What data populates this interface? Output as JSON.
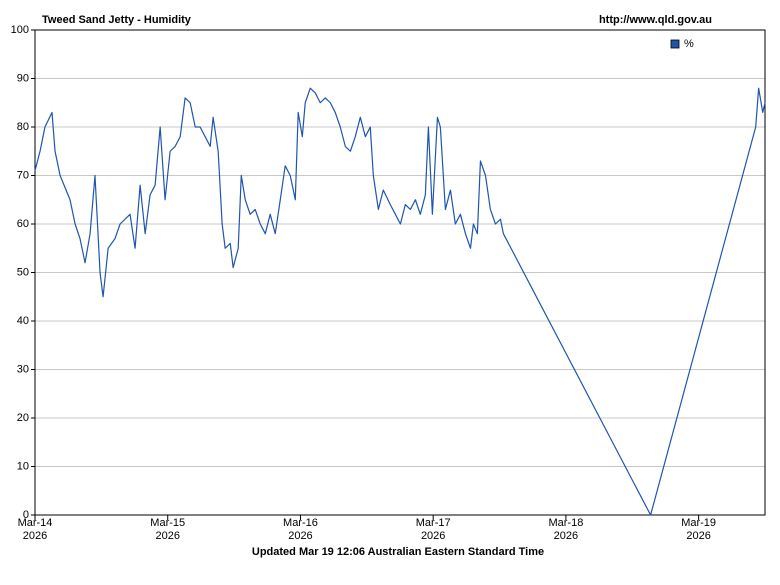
{
  "chart_data": {
    "type": "line",
    "title": "Tweed Sand Jetty - Humidity",
    "source": "http://www.qld.gov.au",
    "footer": "Updated Mar 19 12:06 Australian Eastern Standard Time",
    "x": [
      14.0,
      14.038,
      14.075,
      14.128,
      14.151,
      14.189,
      14.264,
      14.302,
      14.339,
      14.377,
      14.415,
      14.452,
      14.49,
      14.513,
      14.551,
      14.603,
      14.641,
      14.716,
      14.754,
      14.792,
      14.83,
      14.867,
      14.905,
      14.943,
      14.98,
      15.018,
      15.056,
      15.094,
      15.131,
      15.169,
      15.207,
      15.244,
      15.282,
      15.32,
      15.342,
      15.38,
      15.41,
      15.433,
      15.471,
      15.493,
      15.531,
      15.554,
      15.584,
      15.621,
      15.659,
      15.697,
      15.735,
      15.772,
      15.81,
      15.848,
      15.885,
      15.923,
      15.961,
      15.983,
      16.014,
      16.036,
      16.074,
      16.112,
      16.149,
      16.187,
      16.225,
      16.262,
      16.3,
      16.338,
      16.376,
      16.413,
      16.451,
      16.489,
      16.526,
      16.549,
      16.587,
      16.624,
      16.677,
      16.715,
      16.753,
      16.79,
      16.828,
      16.866,
      16.903,
      16.941,
      16.964,
      16.994,
      17.032,
      17.054,
      17.092,
      17.13,
      17.167,
      17.205,
      17.243,
      17.281,
      17.303,
      17.333,
      17.356,
      17.394,
      17.431,
      17.469,
      17.507,
      17.529,
      18.638,
      19.43,
      19.452,
      19.483,
      19.5
    ],
    "series": [
      {
        "name": "%",
        "color": "#1f55ad",
        "values": [
          71,
          75,
          80,
          83,
          75,
          70,
          65,
          60,
          57,
          52,
          58,
          70,
          50,
          45,
          55,
          57,
          60,
          62,
          55,
          68,
          58,
          66,
          68,
          80,
          65,
          75,
          76,
          78,
          86,
          85,
          80,
          80,
          78,
          76,
          82,
          75,
          60,
          55,
          56,
          51,
          55,
          70,
          65,
          62,
          63,
          60,
          58,
          62,
          58,
          65,
          72,
          70,
          65,
          83,
          78,
          85,
          88,
          87,
          85,
          86,
          85,
          83,
          80,
          76,
          75,
          78,
          82,
          78,
          80,
          70,
          63,
          67,
          64,
          62,
          60,
          64,
          63,
          65,
          62,
          66,
          80,
          62,
          82,
          80,
          63,
          67,
          60,
          62,
          58,
          55,
          60,
          58,
          73,
          70,
          63,
          60,
          61,
          58,
          0,
          80,
          88,
          83,
          85
        ]
      }
    ],
    "xlim": [
      14,
      19.5
    ],
    "xticks": [
      {
        "value": 14,
        "label": "Mar-14"
      },
      {
        "value": 15,
        "label": "Mar-15"
      },
      {
        "value": 16,
        "label": "Mar-16"
      },
      {
        "value": 17,
        "label": "Mar-17"
      },
      {
        "value": 18,
        "label": "Mar-18"
      },
      {
        "value": 19,
        "label": "Mar-19"
      }
    ],
    "xtick_year": "2026",
    "ylim": [
      0,
      100
    ],
    "yticks": [
      0,
      10,
      20,
      30,
      40,
      50,
      60,
      70,
      80,
      90,
      100
    ],
    "grid": true,
    "legend": "top-right"
  }
}
